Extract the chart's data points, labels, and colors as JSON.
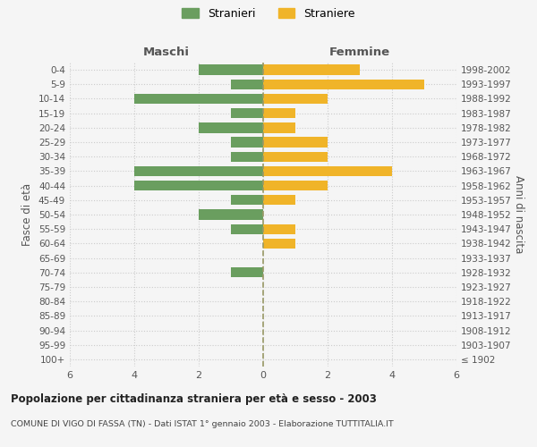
{
  "age_groups": [
    "100+",
    "95-99",
    "90-94",
    "85-89",
    "80-84",
    "75-79",
    "70-74",
    "65-69",
    "60-64",
    "55-59",
    "50-54",
    "45-49",
    "40-44",
    "35-39",
    "30-34",
    "25-29",
    "20-24",
    "15-19",
    "10-14",
    "5-9",
    "0-4"
  ],
  "birth_years": [
    "≤ 1902",
    "1903-1907",
    "1908-1912",
    "1913-1917",
    "1918-1922",
    "1923-1927",
    "1928-1932",
    "1933-1937",
    "1938-1942",
    "1943-1947",
    "1948-1952",
    "1953-1957",
    "1958-1962",
    "1963-1967",
    "1968-1972",
    "1973-1977",
    "1978-1982",
    "1983-1987",
    "1988-1992",
    "1993-1997",
    "1998-2002"
  ],
  "maschi": [
    0,
    0,
    0,
    0,
    0,
    0,
    1,
    0,
    0,
    1,
    2,
    1,
    4,
    4,
    1,
    1,
    2,
    1,
    4,
    1,
    2
  ],
  "femmine": [
    0,
    0,
    0,
    0,
    0,
    0,
    0,
    0,
    1,
    1,
    0,
    1,
    2,
    4,
    2,
    2,
    1,
    1,
    2,
    5,
    3
  ],
  "maschi_color": "#6a9e5f",
  "femmine_color": "#f0b429",
  "background_color": "#f5f5f5",
  "grid_color": "#cccccc",
  "title": "Popolazione per cittadinanza straniera per età e sesso - 2003",
  "subtitle": "COMUNE DI VIGO DI FASSA (TN) - Dati ISTAT 1° gennaio 2003 - Elaborazione TUTTITALIA.IT",
  "xlabel_maschi": "Maschi",
  "xlabel_femmine": "Femmine",
  "ylabel": "Fasce di età",
  "ylabel_right": "Anni di nascita",
  "legend_maschi": "Stranieri",
  "legend_femmine": "Straniere",
  "xlim": 6
}
